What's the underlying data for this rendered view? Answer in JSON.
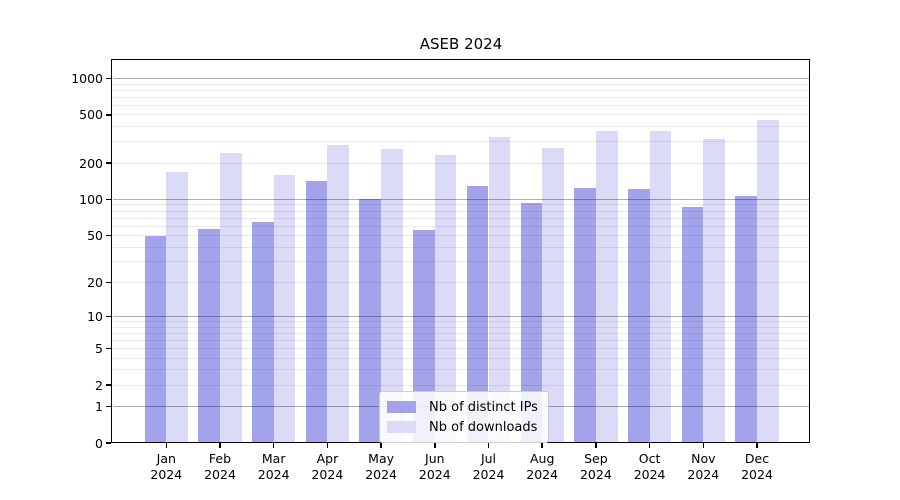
{
  "figure": {
    "background": "#ffffff"
  },
  "chart_data": {
    "type": "bar",
    "title": "ASEB 2024",
    "categories": [
      "Jan",
      "Feb",
      "Mar",
      "Apr",
      "May",
      "Jun",
      "Jul",
      "Aug",
      "Sep",
      "Oct",
      "Nov",
      "Dec"
    ],
    "x_tick_year": "2024",
    "series": [
      {
        "name": "Nb of distinct IPs",
        "key": "distinct-ips",
        "color": "#a3a3ec",
        "values": [
          50,
          57,
          65,
          141,
          100,
          56,
          130,
          94,
          124,
          122,
          86,
          107
        ]
      },
      {
        "name": "Nb of downloads",
        "key": "downloads",
        "color": "#dbdbf8",
        "values": [
          170,
          241,
          160,
          283,
          263,
          232,
          330,
          266,
          370,
          370,
          314,
          455
        ]
      }
    ],
    "y_scale": "log10(1+x)",
    "y_ticks": [
      0,
      1,
      2,
      5,
      10,
      20,
      50,
      100,
      200,
      500,
      1000
    ],
    "ylim": [
      0,
      1400
    ],
    "xlabel": "",
    "ylabel": "",
    "grid": true,
    "legend_position": "lower center",
    "colors": {
      "major_grid": "rgba(0,0,0,0.32)",
      "minor_grid": "rgba(0,0,0,0.08)",
      "axis": "#000000",
      "background": "#ffffff"
    }
  }
}
